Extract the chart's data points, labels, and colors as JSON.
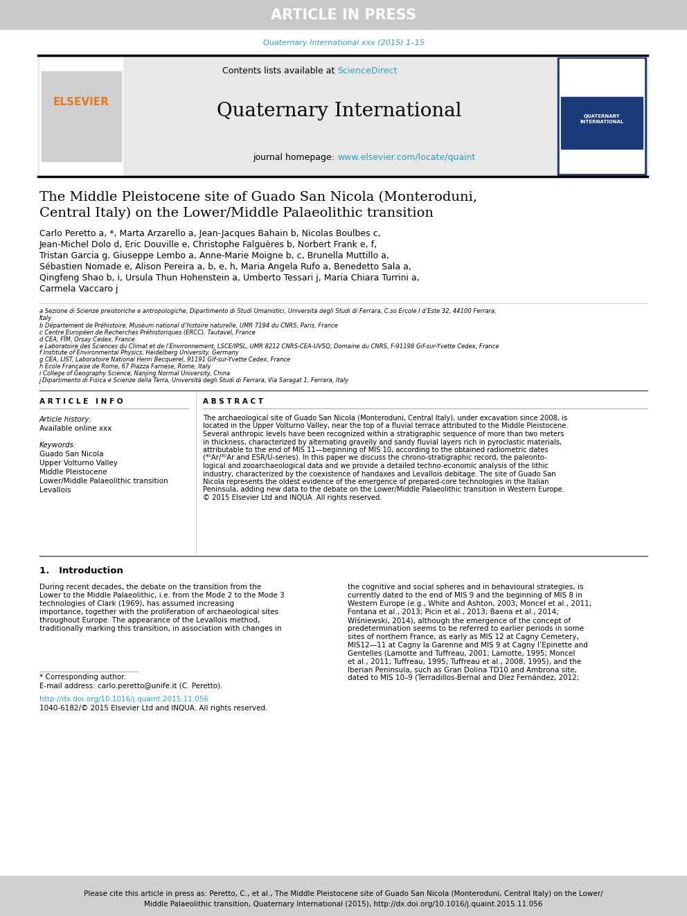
{
  "article_in_press_text": "ARTICLE IN PRESS",
  "article_in_press_bg": "#c8c8c8",
  "article_in_press_color": "#ffffff",
  "journal_ref_text": "Quaternary International xxx (2015) 1–15",
  "journal_ref_color": "#2aa0c8",
  "contents_text": "Contents lists available at ",
  "sciencedirect_text": "ScienceDirect",
  "sciencedirect_color": "#2aa0c8",
  "journal_name": "Quaternary International",
  "homepage_text": "journal homepage: ",
  "homepage_url": "www.elsevier.com/locate/quaint",
  "homepage_url_color": "#2aa0c8",
  "elsevier_color": "#e87722",
  "paper_title_line1": "The Middle Pleistocene site of Guado San Nicola (Monteroduni,",
  "paper_title_line2": "Central Italy) on the Lower/Middle Palaeolithic transition",
  "affil_a": "a Sezione di Scienze preistoriche e antropologiche, Dipartimento di Studi Umanistici, Università degli Studi di Ferrara, C.so Ercole I d’Este 32, 44100 Ferrara,",
  "affil_a2": "Italy",
  "affil_b": "b Département de Préhistoire, Muséum national d’histoire naturelle, UMR 7194 du CNRS, Paris, France",
  "affil_c": "c Centre Européen de Recherches Préhistoriques (ERCC), Tautavel, France",
  "affil_d": "d CEA, FÎM, Orsay Cedex, France",
  "affil_e": "e Laboratoire des Sciences du Climat et de l’Environnement, LSCE/IPSL, UMR 8212 CNRS-CEA-UVSQ, Domaine du CNRS, F-91198 Gif-sur-Yvette Cedex, France",
  "affil_f": "f Institute of Environmental Physics, Heidelberg University, Germany",
  "affil_g": "g CEA, LIST, Laboratoire National Henri Becquerel, 91191 Gif-sur-Yvette Cedex, France",
  "affil_h": "h Ecole Française de Rome, 67 Piazza Farnese, Rome, Italy",
  "affil_i": "i College of Geography Science, Nanjing Normal University, China",
  "affil_j": "j Dipartimento di Fisica e Scienze della Terra, Università degli Studi di Ferrara, Via Saragat 1, Ferrara, Italy",
  "article_info_header": "A R T I C L E   I N F O",
  "article_history_label": "Article history:",
  "available_online": "Available online xxx",
  "keywords_label": "Keywords:",
  "kw1": "Guado San Nicola",
  "kw2": "Upper Volturno Valley",
  "kw3": "Middle Pleistocene",
  "kw4": "Lower/Middle Palaeolithic transition",
  "kw5": "Levallois",
  "abstract_header": "A B S T R A C T",
  "abstract_text": "The archaeological site of Guado San Nicola (Monteroduni, Central Italy), under excavation since 2008, is\nlocated in the Upper Volturno Valley, near the top of a fluvial terrace attributed to the Middle Pleistocene.\nSeveral anthropic levels have been recognized within a stratigraphic sequence of more than two meters\nin thickness, characterized by alternating gravelly and sandy fluvial layers rich in pyroclastic materials,\nattributable to the end of MIS 11—beginning of MIS 10, according to the obtained radiometric dates\n(⁴⁰Ar/³⁰Ar and ESR/U-series). In this paper we discuss the chrono-stratigraphic record, the paleonto-\nlogical and zooarchaeological data and we provide a detailed techno-economic analysis of the lithic\nindustry, characterized by the coexistence of handaxes and Levallois debitage. The site of Guado San\nNicola represents the oldest evidence of the emergence of prepared-core technologies in the Italian\nPeninsula, adding new data to the debate on the Lower/Middle Palaeolithic transition in Western Europe.\n© 2015 Elsevier Ltd and INQUA. All rights reserved.",
  "section1_header": "1.   Introduction",
  "intro_col1": "During recent decades, the debate on the transition from the\nLower to the Middle Palaeolithic, i.e. from the Mode 2 to the Mode 3\ntechnologies of Clark (1969), has assumed increasing\nimportance, together with the proliferation of archaeological sites\nthroughout Europe. The appearance of the Levallois method,\ntraditionally marking this transition, in association with changes in",
  "intro_col2": "the cognitive and social spheres and in behavioural strategies, is\ncurrently dated to the end of MIS 9 and the beginning of MIS 8 in\nWestern Europe (e.g., White and Ashton, 2003; Moncel et al., 2011;\nFontana et al., 2013; Picin et al., 2013; Baena et al., 2014;\nWiśniewski, 2014), although the emergence of the concept of\npredetermination seems to be referred to earlier periods in some\nsites of northern France, as early as MIS 12 at Cagny Cemetery,\nMIS12—11 at Cagny la Garenne and MIS 9 at Cagny l’Epinette and\nGentelles (Lamotte and Tuffreau, 2001; Lamotte, 1995; Moncel\net al., 2011; Tuffreau, 1995; Tuffreau et al., 2008, 1995), and the\nIberian Peninsula, such as Gran Dolina TD10 and Ambrona site,\ndated to MIS 10–9 (Terradillos-Bernal and Díez Fernández, 2012;",
  "footnote_star": "* Corresponding author.",
  "footnote_email": "E-mail address: carlo.peretto@unife.it (C. Peretto).",
  "doi_text": "http://dx.doi.org/10.1016/j.quaint.2015.11.056",
  "issn_text": "1040-6182/© 2015 Elsevier Ltd and INQUA. All rights reserved.",
  "cite_text1": "Please cite this article in press as: Peretto, C., et al., The Middle Pleistocene site of Guado San Nicola (Monteroduni, Central Italy) on the Lower/",
  "cite_text2": "Middle Palaeolithic transition, Quaternary International (2015), http://dx.doi.org/10.1016/j.quaint.2015.11.056",
  "cite_bg": "#d0d0d0",
  "journal_header_bg": "#e8e8e8",
  "link_color": "#2aa0c8"
}
